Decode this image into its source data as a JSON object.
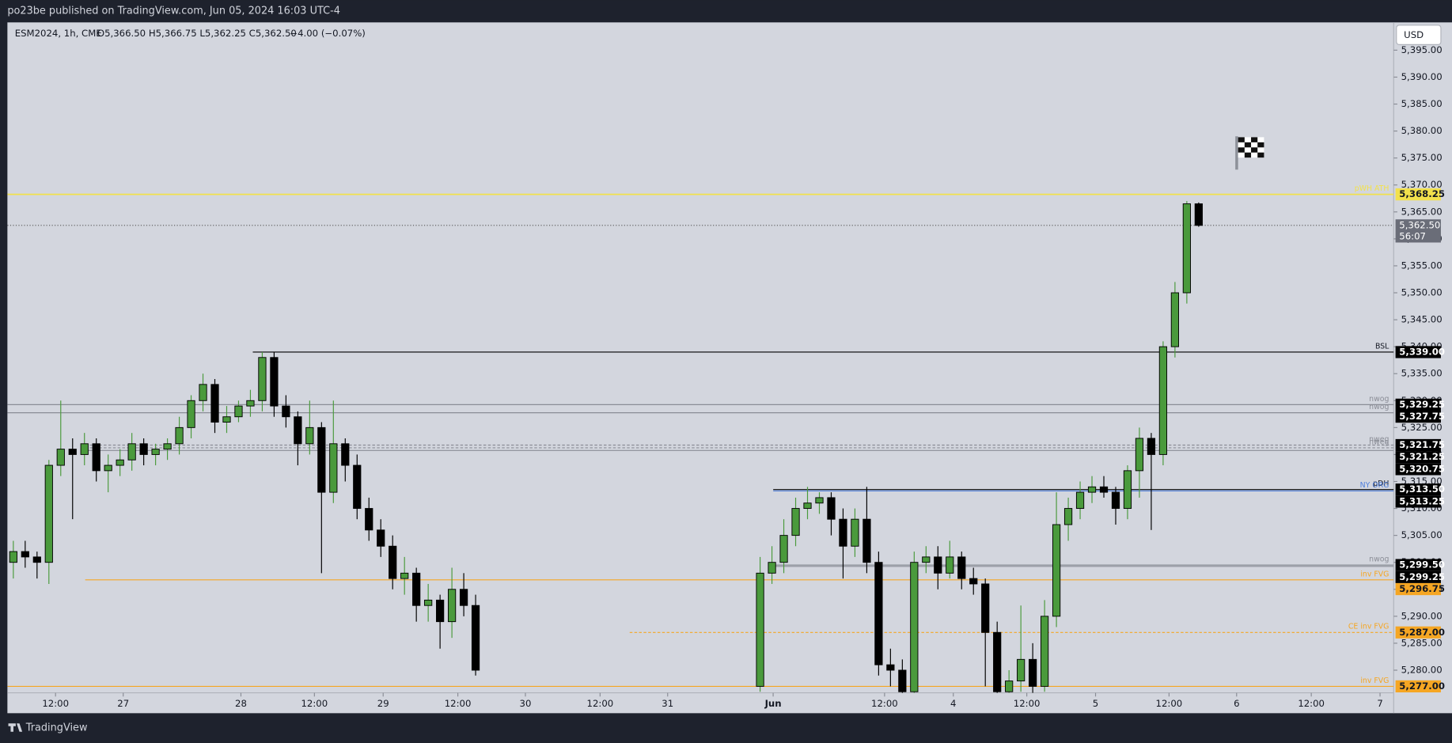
{
  "header": {
    "publisher": "po23be published on TradingView.com, Jun 05, 2024 16:03 UTC-4"
  },
  "footer": {
    "brand": "TradingView"
  },
  "currency": "USD",
  "chart_data": {
    "type": "candlestick",
    "legend": {
      "symbol": "ESM2024, 1h, CME",
      "ohlc": "O5,366.50 H5,366.75 L5,362.25 C5,362.50",
      "change": "−4.00 (−0.07%)"
    },
    "up_color": "#4a9a3c",
    "down_color": "#000000",
    "series": [
      {
        "name": "ESM2024",
        "values": [
          [
            5300,
            5304,
            5297,
            5302
          ],
          [
            5302,
            5304,
            5299,
            5301
          ],
          [
            5301,
            5302,
            5297,
            5300
          ],
          [
            5300,
            5319,
            5296,
            5318
          ],
          [
            5318,
            5330,
            5316,
            5321
          ],
          [
            5321,
            5323,
            5308,
            5320
          ],
          [
            5320,
            5324,
            5318,
            5322
          ],
          [
            5322,
            5323,
            5315,
            5317
          ],
          [
            5317,
            5320,
            5313,
            5318
          ],
          [
            5318,
            5321,
            5316,
            5319
          ],
          [
            5319,
            5324,
            5317,
            5322
          ],
          [
            5322,
            5323,
            5318,
            5320
          ],
          [
            5320,
            5322,
            5318,
            5321
          ],
          [
            5321,
            5323,
            5319,
            5322
          ],
          [
            5322,
            5327,
            5320,
            5325
          ],
          [
            5325,
            5331,
            5323,
            5330
          ],
          [
            5330,
            5335,
            5328,
            5333
          ],
          [
            5333,
            5334,
            5324,
            5326
          ],
          [
            5326,
            5329,
            5324,
            5327
          ],
          [
            5327,
            5330,
            5326,
            5329
          ],
          [
            5329,
            5332,
            5327,
            5330
          ],
          [
            5330,
            5339,
            5328,
            5338
          ],
          [
            5338,
            5339,
            5327,
            5329
          ],
          [
            5329,
            5331,
            5325,
            5327
          ],
          [
            5327,
            5328,
            5318,
            5322
          ],
          [
            5322,
            5330,
            5320,
            5325
          ],
          [
            5325,
            5326,
            5298,
            5313
          ],
          [
            5313,
            5330,
            5311,
            5322
          ],
          [
            5322,
            5323,
            5315,
            5318
          ],
          [
            5318,
            5320,
            5308,
            5310
          ],
          [
            5310,
            5312,
            5304,
            5306
          ],
          [
            5306,
            5308,
            5301,
            5303
          ],
          [
            5303,
            5305,
            5295,
            5297
          ],
          [
            5297,
            5301,
            5294,
            5298
          ],
          [
            5298,
            5299,
            5289,
            5292
          ],
          [
            5292,
            5296,
            5289,
            5293
          ],
          [
            5293,
            5294,
            5284,
            5289
          ],
          [
            5289,
            5299,
            5286,
            5295
          ],
          [
            5295,
            5298,
            5290,
            5292
          ],
          [
            5292,
            5294,
            5279,
            5280
          ],
          null,
          null,
          null,
          null,
          null,
          null,
          null,
          null,
          null,
          null,
          null,
          null,
          null,
          null,
          null,
          null,
          null,
          null,
          null,
          null,
          null,
          null,
          null,
          [
            5277,
            5301,
            5276,
            5298
          ],
          [
            5298,
            5303,
            5296,
            5300
          ],
          [
            5300,
            5308,
            5298,
            5305
          ],
          [
            5305,
            5312,
            5303,
            5310
          ],
          [
            5310,
            5314,
            5308,
            5311
          ],
          [
            5311,
            5313,
            5309,
            5312
          ],
          [
            5312,
            5313,
            5305,
            5308
          ],
          [
            5308,
            5310,
            5297,
            5303
          ],
          [
            5303,
            5310,
            5301,
            5308
          ],
          [
            5308,
            5314,
            5298,
            5300
          ],
          [
            5300,
            5302,
            5279,
            5281
          ],
          [
            5281,
            5284,
            5277,
            5280
          ],
          [
            5280,
            5282,
            5274,
            5276
          ],
          [
            5276,
            5302,
            5275,
            5300
          ],
          [
            5300,
            5303,
            5298,
            5301
          ],
          [
            5301,
            5303,
            5295,
            5298
          ],
          [
            5298,
            5304,
            5297,
            5301
          ],
          [
            5301,
            5302,
            5295,
            5297
          ],
          [
            5297,
            5299,
            5294,
            5296
          ],
          [
            5296,
            5297,
            5277,
            5287
          ],
          [
            5287,
            5289,
            5274,
            5276
          ],
          [
            5276,
            5280,
            5275,
            5278
          ],
          [
            5278,
            5292,
            5276,
            5282
          ],
          [
            5282,
            5285,
            5275,
            5277
          ],
          [
            5277,
            5293,
            5276,
            5290
          ],
          [
            5290,
            5313,
            5288,
            5307
          ],
          [
            5307,
            5312,
            5304,
            5310
          ],
          [
            5310,
            5315,
            5308,
            5313
          ],
          [
            5313,
            5316,
            5311,
            5314
          ],
          [
            5314,
            5316,
            5312,
            5313
          ],
          [
            5313,
            5314,
            5307,
            5310
          ],
          [
            5310,
            5318,
            5308,
            5317
          ],
          [
            5317,
            5325,
            5312,
            5323
          ],
          [
            5323,
            5324,
            5306,
            5320
          ],
          [
            5320,
            5341,
            5318,
            5340
          ],
          [
            5340,
            5352,
            5338,
            5350
          ],
          [
            5350,
            5367,
            5348,
            5366.5
          ],
          [
            5366.5,
            5366.75,
            5362.25,
            5362.5
          ]
        ]
      }
    ],
    "xlim": [
      -0.5,
      116.45
    ],
    "xticks": [
      {
        "value": 3.56,
        "label": "12:00"
      },
      {
        "value": 9.27,
        "label": "27"
      },
      {
        "value": 19.2,
        "label": "28"
      },
      {
        "value": 25.4,
        "label": "12:00"
      },
      {
        "value": 31.2,
        "label": "29"
      },
      {
        "value": 37.5,
        "label": "12:00"
      },
      {
        "value": 43.2,
        "label": "30"
      },
      {
        "value": 49.5,
        "label": "12:00"
      },
      {
        "value": 55.2,
        "label": "31"
      },
      {
        "value": 64.1,
        "label": "Jun"
      },
      {
        "value": 73.5,
        "label": "12:00"
      },
      {
        "value": 79.3,
        "label": "4"
      },
      {
        "value": 85.5,
        "label": "12:00"
      },
      {
        "value": 91.3,
        "label": "5"
      },
      {
        "value": 97.5,
        "label": "12:00"
      },
      {
        "value": 103.2,
        "label": "6"
      },
      {
        "value": 109.5,
        "label": "12:00"
      },
      {
        "value": 115.3,
        "label": "7"
      }
    ],
    "ylim": [
      5275.8,
      5400.15
    ],
    "yticks": [
      {
        "value": 5280,
        "label": "5,280.00"
      },
      {
        "value": 5285,
        "label": "5,285.00"
      },
      {
        "value": 5290,
        "label": "5,290.00"
      },
      {
        "value": 5295,
        "label": "5,295.00"
      },
      {
        "value": 5300,
        "label": "5,300.00"
      },
      {
        "value": 5305,
        "label": "5,305.00"
      },
      {
        "value": 5310,
        "label": "5,310.00"
      },
      {
        "value": 5315,
        "label": "5,315.00"
      },
      {
        "value": 5320,
        "label": "5,320.00"
      },
      {
        "value": 5325,
        "label": "5,325.00"
      },
      {
        "value": 5330,
        "label": "5,330.00"
      },
      {
        "value": 5335,
        "label": "5,335.00"
      },
      {
        "value": 5340,
        "label": "5,340.00"
      },
      {
        "value": 5345,
        "label": "5,345.00"
      },
      {
        "value": 5350,
        "label": "5,350.00"
      },
      {
        "value": 5355,
        "label": "5,355.00"
      },
      {
        "value": 5360,
        "label": "5,360.00"
      },
      {
        "value": 5365,
        "label": "5,365.00"
      },
      {
        "value": 5370,
        "label": "5,370.00"
      },
      {
        "value": 5375,
        "label": "5,375.00"
      },
      {
        "value": 5380,
        "label": "5,380.00"
      },
      {
        "value": 5385,
        "label": "5,385.00"
      },
      {
        "value": 5390,
        "label": "5,390.00"
      },
      {
        "value": 5395,
        "label": "5,395.00"
      }
    ],
    "levels": [
      {
        "name": "pWH ATH",
        "value": 5368.25,
        "value_label": "5,368.25",
        "color": "#f2e14c"
      },
      {
        "name": "BSL",
        "value": 5339.0,
        "value_label": "5,339.00",
        "color": "#000000"
      },
      {
        "name": "nwog",
        "value": 5329.25,
        "value_label": "5,329.25",
        "color": "#8a8d96"
      },
      {
        "name": "nwog",
        "value": 5327.75,
        "value_label": "5,327.75",
        "color": "#8a8d96"
      },
      {
        "name": "nweg",
        "value": 5321.75,
        "value_label": "5,321.75",
        "color": "#8a8d96"
      },
      {
        "name": "nweg",
        "value": 5321.25,
        "value_label": "5,321.25",
        "color": "#8a8d96"
      },
      {
        "value": 5320.75,
        "value_label": "5,320.75",
        "color": "#8a8d96"
      },
      {
        "name": "pDH",
        "value": 5313.5,
        "value_label": "5,313.50",
        "color": "#000000"
      },
      {
        "name": "NY ORG",
        "value": 5313.25,
        "value_label": "5,313.25",
        "color": "#4f7fdc"
      },
      {
        "name": "nwog",
        "value": 5299.5,
        "value_label": "5,299.50",
        "color": "#8a8d96"
      },
      {
        "value": 5299.25,
        "value_label": "5,299.25",
        "color": "#8a8d96"
      },
      {
        "name": "inv FVG",
        "value": 5296.75,
        "value_label": "5,296.75",
        "color": "#f5a623"
      },
      {
        "name": "CE inv FVG",
        "value": 5287.0,
        "value_label": "5,287.00",
        "color": "#f5a623"
      },
      {
        "name": "inv FVG",
        "value": 5277.0,
        "value_label": "5,277.00",
        "color": "#f5a623"
      }
    ],
    "last_price": {
      "value": 5362.5,
      "label": "5,362.50",
      "countdown": "56:07"
    }
  }
}
